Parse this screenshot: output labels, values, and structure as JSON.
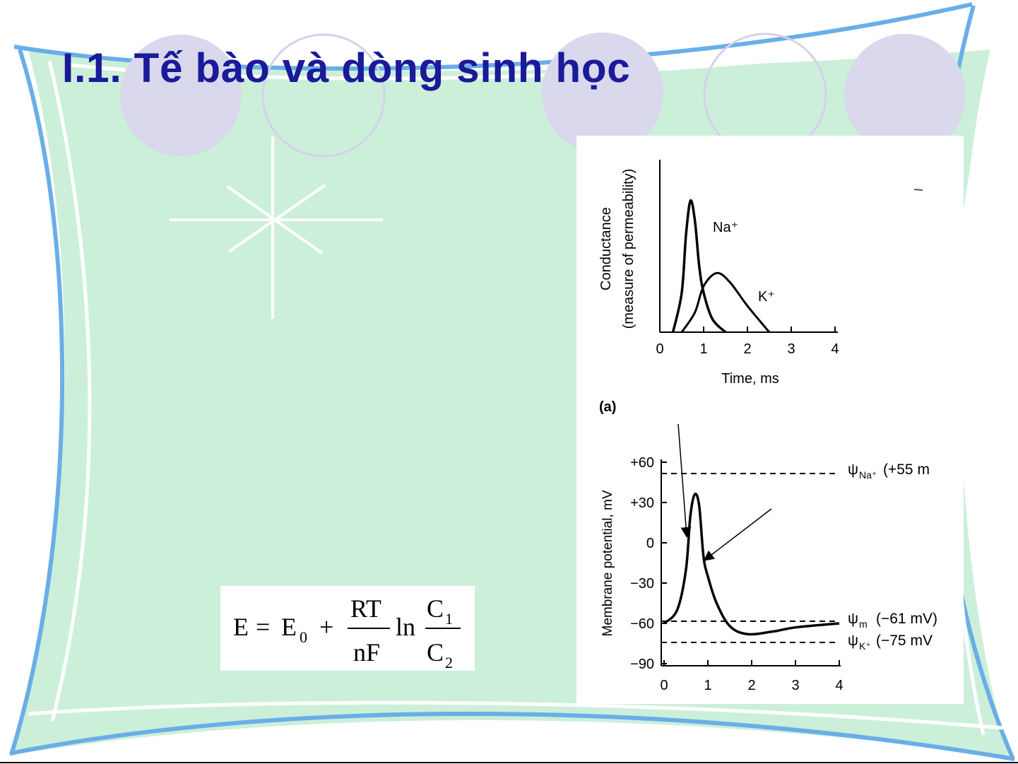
{
  "slide": {
    "title": "I.1. Tế bào và dòng sinh học",
    "colors": {
      "title": "#1a1a9a",
      "panel_fill": "#ccefd9",
      "frame_stroke": "#6aaee8",
      "circle_fill": "#d9d8ec",
      "circle_stroke": "#c8c6e2"
    }
  },
  "formula": {
    "lhs": "E",
    "eq": "=",
    "e0": "E",
    "e0_sub": "0",
    "plus": "+",
    "num": "RT",
    "den": "nF",
    "ln": "ln",
    "c1": "C",
    "c1_sub": "1",
    "c2": "C",
    "c2_sub": "2"
  },
  "figure": {
    "panel_a": {
      "ylabel_line1": "Conductance",
      "ylabel_line2": "(measure of permeability)",
      "xlabel": "Time, ms",
      "label": "(a)",
      "x_ticks": [
        "0",
        "1",
        "2",
        "3",
        "4"
      ],
      "series": [
        {
          "name": "Na⁺"
        },
        {
          "name": "K⁺"
        }
      ]
    },
    "panel_b": {
      "ylabel": "Membrane potential, mV",
      "y_ticks": [
        "+60",
        "+30",
        "0",
        "−30",
        "−60",
        "−90"
      ],
      "x_ticks": [
        "0",
        "1",
        "2",
        "3",
        "4"
      ],
      "ref_na_sym": "ψ",
      "ref_na_sub": "Na⁺",
      "ref_na_val": "(+55 m",
      "ref_m_sym": "ψ",
      "ref_m_sub": "m",
      "ref_m_val": "(−61 mV)",
      "ref_k_sym": "ψ",
      "ref_k_sub": "K⁺",
      "ref_k_val": "(−75 mV"
    }
  },
  "chart_data": [
    {
      "type": "line",
      "title": "",
      "xlabel": "Time, ms",
      "ylabel": "Conductance (measure of permeability)",
      "xlim": [
        0,
        4
      ],
      "series": [
        {
          "name": "Na⁺",
          "x": [
            0.3,
            0.5,
            0.6,
            0.7,
            0.8,
            0.9,
            1.0,
            1.2,
            1.5
          ],
          "y": [
            0,
            0.3,
            0.75,
            1.0,
            0.85,
            0.5,
            0.3,
            0.1,
            0
          ]
        },
        {
          "name": "K⁺",
          "x": [
            0.5,
            0.8,
            1.0,
            1.3,
            1.6,
            2.0,
            2.5
          ],
          "y": [
            0,
            0.15,
            0.35,
            0.45,
            0.38,
            0.2,
            0
          ]
        }
      ]
    },
    {
      "type": "line",
      "title": "",
      "xlabel": "",
      "ylabel": "Membrane potential, mV",
      "xlim": [
        0,
        4
      ],
      "ylim": [
        -90,
        60
      ],
      "series": [
        {
          "name": "",
          "x": [
            0,
            0.3,
            0.5,
            0.6,
            0.7,
            0.8,
            0.9,
            1.0,
            1.2,
            1.5,
            1.9,
            2.5,
            3.0,
            4.0
          ],
          "y": [
            -60,
            -50,
            -20,
            20,
            36,
            28,
            -10,
            -25,
            -45,
            -62,
            -68,
            -66,
            -63,
            -60
          ]
        }
      ],
      "reference_lines": [
        {
          "label": "ψNa⁺",
          "value": 55
        },
        {
          "label": "ψm",
          "value": -61
        },
        {
          "label": "ψK⁺",
          "value": -75
        }
      ]
    }
  ]
}
